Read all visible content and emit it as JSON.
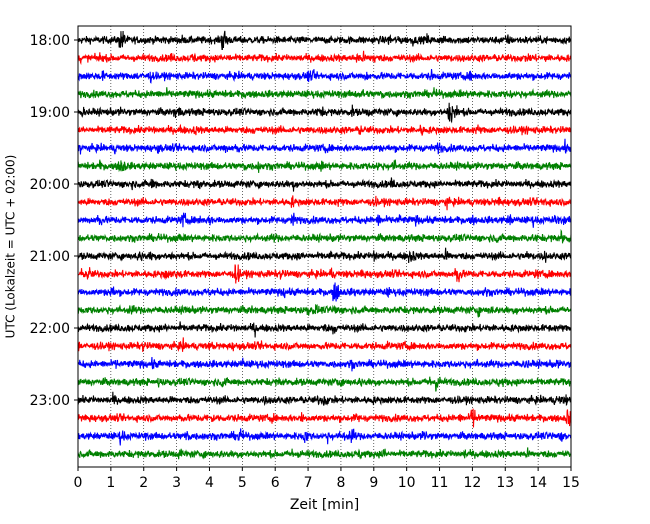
{
  "chart_data": {
    "type": "line",
    "title": "",
    "xlabel": "Zeit  [min]",
    "ylabel": "UTC (Lokalzeit = UTC + 02:00)",
    "xlim": [
      0,
      15
    ],
    "xticks": [
      "0",
      "1",
      "2",
      "3",
      "4",
      "5",
      "6",
      "7",
      "8",
      "9",
      "10",
      "11",
      "12",
      "13",
      "14",
      "15"
    ],
    "yticks": [
      {
        "label": "18:00",
        "trace": 0
      },
      {
        "label": "19:00",
        "trace": 4
      },
      {
        "label": "20:00",
        "trace": 8
      },
      {
        "label": "21:00",
        "trace": 12
      },
      {
        "label": "22:00",
        "trace": 16
      },
      {
        "label": "23:00",
        "trace": 20
      }
    ],
    "vertical_grid": true,
    "trace_colors": [
      "#000000",
      "#ff0000",
      "#0000ff",
      "#008000"
    ],
    "trace_count": 24,
    "trace_interval_minutes": 15,
    "noise_amplitude": 0.35,
    "events": [
      {
        "trace": 0,
        "x": 1.3,
        "amp": 1.4
      },
      {
        "trace": 0,
        "x": 4.4,
        "amp": 1.5
      },
      {
        "trace": 1,
        "x": 3.5,
        "amp": 0.7
      },
      {
        "trace": 1,
        "x": 13.8,
        "amp": 0.7
      },
      {
        "trace": 4,
        "x": 3.0,
        "amp": 0.9
      },
      {
        "trace": 4,
        "x": 11.3,
        "amp": 1.8
      },
      {
        "trace": 4,
        "x": 4.0,
        "amp": 0.6
      },
      {
        "trace": 6,
        "x": 4.8,
        "amp": 0.8
      },
      {
        "trace": 6,
        "x": 11.0,
        "amp": 0.7
      },
      {
        "trace": 7,
        "x": 1.3,
        "amp": 1.1
      },
      {
        "trace": 8,
        "x": 2.3,
        "amp": 0.6
      },
      {
        "trace": 10,
        "x": 0.6,
        "amp": 1.0
      },
      {
        "trace": 10,
        "x": 3.2,
        "amp": 0.9
      },
      {
        "trace": 10,
        "x": 6.5,
        "amp": 1.0
      },
      {
        "trace": 10,
        "x": 10.3,
        "amp": 0.6
      },
      {
        "trace": 11,
        "x": 14.7,
        "amp": 0.9
      },
      {
        "trace": 12,
        "x": 9.0,
        "amp": 0.9
      },
      {
        "trace": 12,
        "x": 10.1,
        "amp": 1.1
      },
      {
        "trace": 12,
        "x": 11.2,
        "amp": 0.8
      },
      {
        "trace": 13,
        "x": 0.3,
        "amp": 0.9
      },
      {
        "trace": 13,
        "x": 4.8,
        "amp": 1.3
      },
      {
        "trace": 13,
        "x": 11.5,
        "amp": 1.4
      },
      {
        "trace": 14,
        "x": 1.0,
        "amp": 0.9
      },
      {
        "trace": 14,
        "x": 7.8,
        "amp": 1.6
      },
      {
        "trace": 15,
        "x": 1.6,
        "amp": 0.7
      },
      {
        "trace": 15,
        "x": 7.8,
        "amp": 0.8
      },
      {
        "trace": 16,
        "x": 7.8,
        "amp": 0.6
      },
      {
        "trace": 19,
        "x": 4.4,
        "amp": 0.8
      },
      {
        "trace": 19,
        "x": 10.9,
        "amp": 1.1
      },
      {
        "trace": 20,
        "x": 7.5,
        "amp": 0.8
      },
      {
        "trace": 21,
        "x": 12.0,
        "amp": 1.4
      },
      {
        "trace": 21,
        "x": 14.9,
        "amp": 1.1
      },
      {
        "trace": 22,
        "x": 1.3,
        "amp": 0.9
      },
      {
        "trace": 22,
        "x": 3.3,
        "amp": 0.9
      },
      {
        "trace": 22,
        "x": 4.9,
        "amp": 1.0
      },
      {
        "trace": 22,
        "x": 6.9,
        "amp": 0.9
      },
      {
        "trace": 22,
        "x": 8.3,
        "amp": 1.0
      },
      {
        "trace": 23,
        "x": 3.1,
        "amp": 0.7
      }
    ]
  }
}
